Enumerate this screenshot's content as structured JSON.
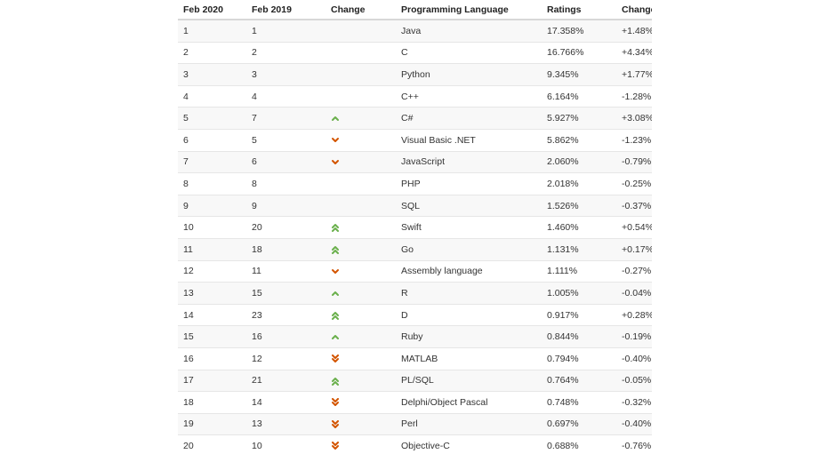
{
  "colors": {
    "up": "#6ab04c",
    "down": "#d35400"
  },
  "table": {
    "headers": [
      "Feb 2020",
      "Feb 2019",
      "Change",
      "Programming Language",
      "Ratings",
      "Change"
    ],
    "rows": [
      {
        "feb2020": "1",
        "feb2019": "1",
        "change_icon": "",
        "language": "Java",
        "ratings": "17.358%",
        "change": "+1.48%"
      },
      {
        "feb2020": "2",
        "feb2019": "2",
        "change_icon": "",
        "language": "C",
        "ratings": "16.766%",
        "change": "+4.34%"
      },
      {
        "feb2020": "3",
        "feb2019": "3",
        "change_icon": "",
        "language": "Python",
        "ratings": "9.345%",
        "change": "+1.77%"
      },
      {
        "feb2020": "4",
        "feb2019": "4",
        "change_icon": "",
        "language": "C++",
        "ratings": "6.164%",
        "change": "-1.28%"
      },
      {
        "feb2020": "5",
        "feb2019": "7",
        "change_icon": "up",
        "language": "C#",
        "ratings": "5.927%",
        "change": "+3.08%"
      },
      {
        "feb2020": "6",
        "feb2019": "5",
        "change_icon": "down",
        "language": "Visual Basic .NET",
        "ratings": "5.862%",
        "change": "-1.23%"
      },
      {
        "feb2020": "7",
        "feb2019": "6",
        "change_icon": "down",
        "language": "JavaScript",
        "ratings": "2.060%",
        "change": "-0.79%"
      },
      {
        "feb2020": "8",
        "feb2019": "8",
        "change_icon": "",
        "language": "PHP",
        "ratings": "2.018%",
        "change": "-0.25%"
      },
      {
        "feb2020": "9",
        "feb2019": "9",
        "change_icon": "",
        "language": "SQL",
        "ratings": "1.526%",
        "change": "-0.37%"
      },
      {
        "feb2020": "10",
        "feb2019": "20",
        "change_icon": "double-up",
        "language": "Swift",
        "ratings": "1.460%",
        "change": "+0.54%"
      },
      {
        "feb2020": "11",
        "feb2019": "18",
        "change_icon": "double-up",
        "language": "Go",
        "ratings": "1.131%",
        "change": "+0.17%"
      },
      {
        "feb2020": "12",
        "feb2019": "11",
        "change_icon": "down",
        "language": "Assembly language",
        "ratings": "1.111%",
        "change": "-0.27%"
      },
      {
        "feb2020": "13",
        "feb2019": "15",
        "change_icon": "up",
        "language": "R",
        "ratings": "1.005%",
        "change": "-0.04%"
      },
      {
        "feb2020": "14",
        "feb2019": "23",
        "change_icon": "double-up",
        "language": "D",
        "ratings": "0.917%",
        "change": "+0.28%"
      },
      {
        "feb2020": "15",
        "feb2019": "16",
        "change_icon": "up",
        "language": "Ruby",
        "ratings": "0.844%",
        "change": "-0.19%"
      },
      {
        "feb2020": "16",
        "feb2019": "12",
        "change_icon": "double-down",
        "language": "MATLAB",
        "ratings": "0.794%",
        "change": "-0.40%"
      },
      {
        "feb2020": "17",
        "feb2019": "21",
        "change_icon": "double-up",
        "language": "PL/SQL",
        "ratings": "0.764%",
        "change": "-0.05%"
      },
      {
        "feb2020": "18",
        "feb2019": "14",
        "change_icon": "double-down",
        "language": "Delphi/Object Pascal",
        "ratings": "0.748%",
        "change": "-0.32%"
      },
      {
        "feb2020": "19",
        "feb2019": "13",
        "change_icon": "double-down",
        "language": "Perl",
        "ratings": "0.697%",
        "change": "-0.40%"
      },
      {
        "feb2020": "20",
        "feb2019": "10",
        "change_icon": "double-down",
        "language": "Objective-C",
        "ratings": "0.688%",
        "change": "-0.76%"
      }
    ]
  }
}
